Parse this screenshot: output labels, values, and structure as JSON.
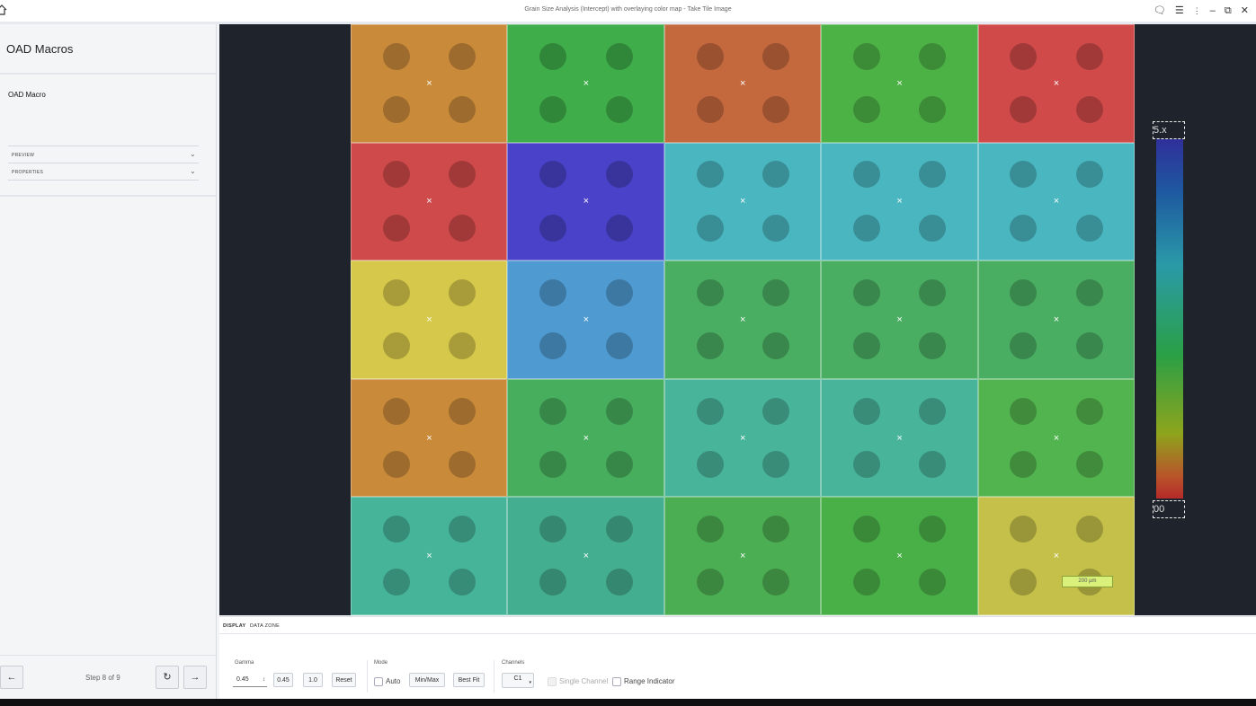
{
  "window": {
    "title": "Grain Size Analysis (Intercept) with overlaying color map - Take Tile Image"
  },
  "sidebar": {
    "heading": "OAD Macros",
    "macro_name": "OAD Macro",
    "sections": [
      {
        "label": "PREVIEW"
      },
      {
        "label": "PROPERTIES"
      }
    ],
    "footer": {
      "step": "Step 8 of 9",
      "back_icon": "arrow-left-icon",
      "refresh_icon": "refresh-icon",
      "next_icon": "arrow-right-icon"
    }
  },
  "viewer": {
    "scale_bar": "200 µm",
    "colorbar": {
      "top_label": "5.x",
      "bottom_label": "00",
      "colors": [
        "#2f2f9a",
        "#1e5aa0",
        "#2a9aa8",
        "#2aa046",
        "#8ea41c",
        "#b9532a",
        "#b52a2a"
      ]
    },
    "tiles": [
      [
        "#c98a3a",
        "#3fae4a",
        "#c4683e",
        "#4db246",
        "#d04a4a"
      ],
      [
        "#cf4a4a",
        "#4a42c8",
        "#4ab6c0",
        "#4ab6c0",
        "#4ab6c0"
      ],
      [
        "#d6c84a",
        "#4f9ad0",
        "#49ae62",
        "#49ae62",
        "#49ae62"
      ],
      [
        "#c98a3a",
        "#47ae5e",
        "#48b49a",
        "#48b49a",
        "#52b44e"
      ],
      [
        "#46b498",
        "#44ae90",
        "#4cae52",
        "#49b048",
        "#c4c04a"
      ]
    ]
  },
  "bottom_panel": {
    "tabs": [
      {
        "label": "DISPLAY",
        "active": true
      },
      {
        "label": "DATA ZONE",
        "active": false
      }
    ],
    "gamma": {
      "label": "Gamma",
      "value": "0.45",
      "presets": [
        "0.45",
        "1.0"
      ],
      "reset": "Reset"
    },
    "mode": {
      "label": "Mode",
      "auto": "Auto",
      "minmax": "Min/Max",
      "bestfit": "Best Fit"
    },
    "channels": {
      "label": "Channels",
      "selected": "C1",
      "single_channel": "Single Channel",
      "range_indicator": "Range Indicator"
    }
  }
}
